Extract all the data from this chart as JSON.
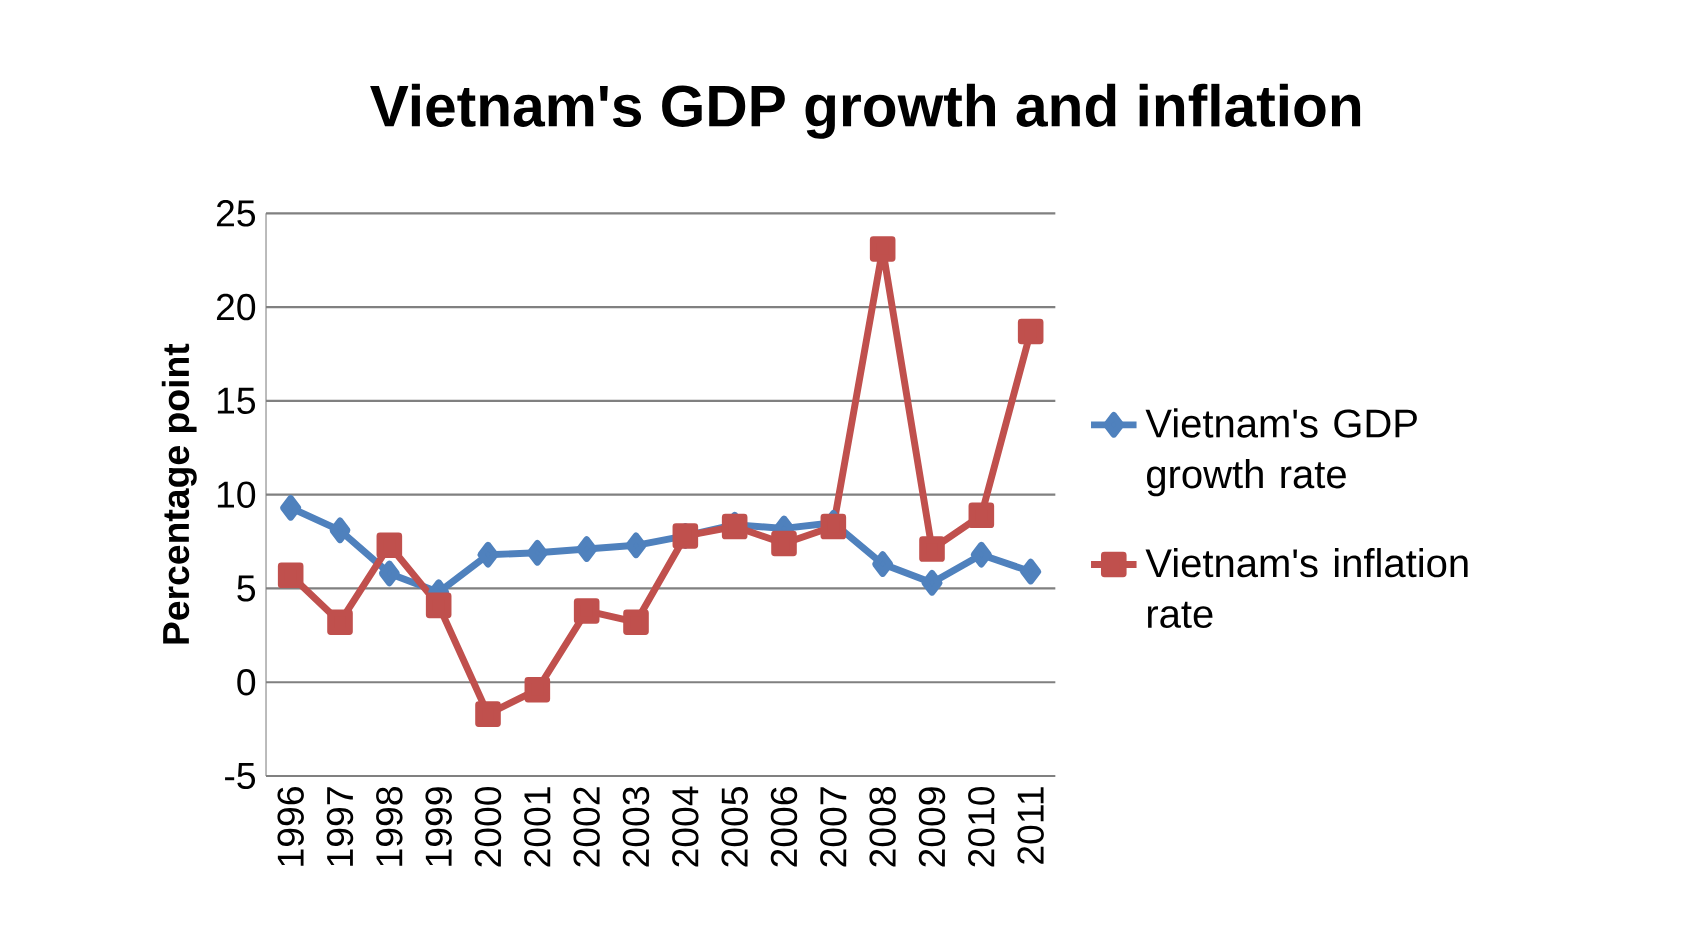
{
  "chart_data": {
    "type": "line",
    "title": "Vietnam's GDP growth and inflation",
    "ylabel": "Percentage point",
    "categories": [
      "1996",
      "1997",
      "1998",
      "1999",
      "2000",
      "2001",
      "2002",
      "2003",
      "2004",
      "2005",
      "2006",
      "2007",
      "2008",
      "2009",
      "2010",
      "2011"
    ],
    "series": [
      {
        "name": "Vietnam's GDP growth rate",
        "color": "#4f81bd",
        "marker": "diamond",
        "values": [
          9.3,
          8.1,
          5.8,
          4.8,
          6.8,
          6.9,
          7.1,
          7.3,
          7.8,
          8.4,
          8.2,
          8.5,
          6.3,
          5.3,
          6.8,
          5.9
        ]
      },
      {
        "name": "Vietnam's inflation rate",
        "color": "#c0504d",
        "marker": "square",
        "values": [
          5.7,
          3.2,
          7.3,
          4.1,
          -1.7,
          -0.4,
          3.8,
          3.2,
          7.8,
          8.3,
          7.4,
          8.3,
          23.1,
          7.1,
          8.9,
          18.7
        ]
      }
    ],
    "ylim": [
      -5,
      25
    ],
    "yticks": [
      -5,
      0,
      5,
      10,
      15,
      20,
      25
    ],
    "grid": "y",
    "legend": "right",
    "line_style": "solid"
  }
}
